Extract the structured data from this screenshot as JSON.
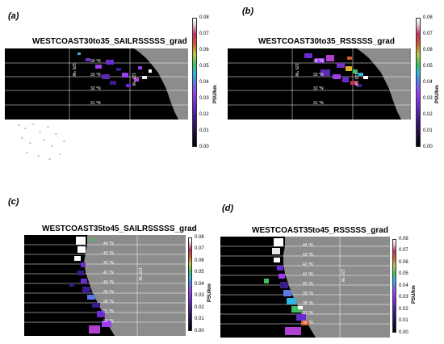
{
  "panels": [
    {
      "letter": "(a)",
      "title": "WESTCOAST30to35_SAILRSSSSS_grad",
      "lat_labels": [
        "34 °N",
        "33 °N",
        "32 °N",
        "31 °N"
      ],
      "lon_labels": [
        "125 °W",
        "120 °W"
      ]
    },
    {
      "letter": "(b)",
      "title": "WESTCOAST30to35_RSSSSS_grad",
      "lat_labels": [
        "34 °N",
        "33 °N",
        "32 °N",
        "31 °N"
      ],
      "lon_labels": [
        "125 °W",
        "120 °W"
      ]
    },
    {
      "letter": "(c)",
      "title": "WESTCOAST35to45_SAILRSSSSS_grad",
      "lat_labels": [
        "44 °N",
        "43 °N",
        "42 °N",
        "41 °N",
        "40 °N",
        "39 °N",
        "38 °N",
        "37 °N",
        "36 °N"
      ],
      "lon_labels": [
        "120 °W"
      ]
    },
    {
      "letter": "(d)",
      "title": "WESTCOAST35to45_RSSSSS_grad",
      "lat_labels": [
        "44 °N",
        "43 °N",
        "42 °N",
        "41 °N",
        "40 °N",
        "39 °N",
        "38 °N",
        "37 °N",
        "36 °N"
      ],
      "lon_labels": [
        "120 °W"
      ]
    }
  ],
  "colorbar": {
    "unit": "PSU/km",
    "ticks": [
      "0.08",
      "0.07",
      "0.06",
      "0.05",
      "0.04",
      "0.03",
      "0.02",
      "0.01",
      "0.00"
    ]
  },
  "colors": {
    "land": "#8c8c8c",
    "ocean": "#000000",
    "grid": "#ffffff"
  }
}
